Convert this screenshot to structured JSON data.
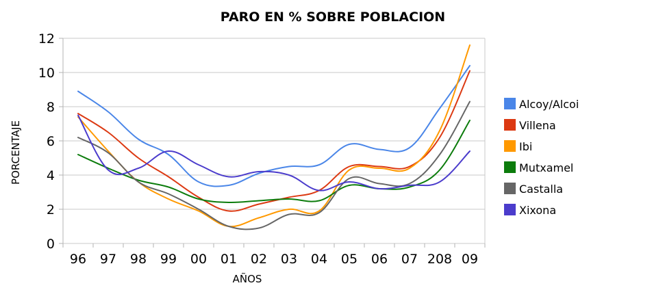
{
  "chart_data": {
    "type": "line",
    "title": "PARO EN % SOBRE POBLACION",
    "xlabel": "AÑOS",
    "ylabel": "PORCENTAJE",
    "categories": [
      "96",
      "97",
      "98",
      "99",
      "00",
      "01",
      "02",
      "03",
      "04",
      "05",
      "06",
      "07",
      "208",
      "09"
    ],
    "ylim": [
      0,
      12
    ],
    "yticks": [
      "0",
      "2",
      "4",
      "6",
      "8",
      "10",
      "12"
    ],
    "grid": true,
    "legend_position": "right",
    "series": [
      {
        "name": "Alcoy/Alcoi",
        "color": "#4a86e8",
        "values": [
          8.9,
          7.7,
          6.1,
          5.2,
          3.6,
          3.4,
          4.1,
          4.5,
          4.6,
          5.8,
          5.5,
          5.6,
          7.9,
          10.4
        ]
      },
      {
        "name": "Villena",
        "color": "#dc3912",
        "values": [
          7.6,
          6.5,
          5.0,
          3.9,
          2.7,
          1.9,
          2.3,
          2.7,
          3.1,
          4.5,
          4.5,
          4.5,
          6.2,
          10.1
        ]
      },
      {
        "name": "Ibi",
        "color": "#ff9900",
        "values": [
          7.4,
          5.4,
          3.6,
          2.6,
          1.9,
          1.0,
          1.5,
          2.0,
          1.9,
          4.3,
          4.4,
          4.4,
          6.6,
          11.6
        ]
      },
      {
        "name": "Mutxamel",
        "color": "#0c7c0c",
        "values": [
          5.2,
          4.4,
          3.7,
          3.3,
          2.6,
          2.4,
          2.5,
          2.6,
          2.5,
          3.4,
          3.2,
          3.3,
          4.3,
          7.2
        ]
      },
      {
        "name": "Castalla",
        "color": "#666666",
        "values": [
          6.2,
          5.3,
          3.6,
          2.9,
          2.0,
          1.0,
          0.9,
          1.7,
          1.8,
          3.8,
          3.5,
          3.5,
          5.2,
          8.3
        ]
      },
      {
        "name": "Xixona",
        "color": "#4b3ccc",
        "values": [
          7.5,
          4.3,
          4.4,
          5.4,
          4.6,
          3.9,
          4.2,
          4.0,
          3.1,
          3.6,
          3.2,
          3.4,
          3.6,
          5.4
        ]
      }
    ]
  }
}
